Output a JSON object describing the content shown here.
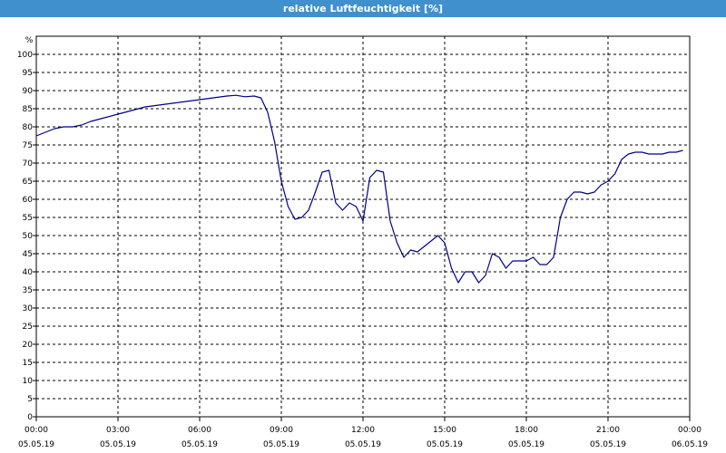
{
  "window": {
    "title": "relative Luftfeuchtigkeit [%]"
  },
  "colors": {
    "titlebar": "#3f90cc",
    "line": "#00008b",
    "grid": "#000000"
  },
  "chart_data": {
    "type": "line",
    "title": "relative Luftfeuchtigkeit [%]",
    "ylabel": "%",
    "xlabel": "",
    "ylim": [
      0,
      105
    ],
    "yticks": [
      "0",
      "5",
      "10",
      "15",
      "20",
      "25",
      "30",
      "35",
      "40",
      "45",
      "50",
      "55",
      "60",
      "65",
      "70",
      "75",
      "80",
      "85",
      "90",
      "95",
      "100"
    ],
    "xlim": [
      "05.05.19 00:00",
      "06.05.19 00:00"
    ],
    "xticks": [
      {
        "time": "00:00",
        "date": "05.05.19"
      },
      {
        "time": "03:00",
        "date": "05.05.19"
      },
      {
        "time": "06:00",
        "date": "05.05.19"
      },
      {
        "time": "09:00",
        "date": "05.05.19"
      },
      {
        "time": "12:00",
        "date": "05.05.19"
      },
      {
        "time": "15:00",
        "date": "05.05.19"
      },
      {
        "time": "18:00",
        "date": "05.05.19"
      },
      {
        "time": "21:00",
        "date": "05.05.19"
      },
      {
        "time": "00:00",
        "date": "06.05.19"
      }
    ],
    "grid": true,
    "legend": "none",
    "series": [
      {
        "x": [
          "00:00",
          "00:20",
          "00:40",
          "01:00",
          "01:20",
          "01:40",
          "02:00",
          "02:30",
          "03:00",
          "03:30",
          "04:00",
          "04:30",
          "05:00",
          "05:30",
          "06:00",
          "06:30",
          "07:00",
          "07:20",
          "07:40",
          "08:00",
          "08:15",
          "08:30",
          "08:45",
          "09:00",
          "09:15",
          "09:30",
          "09:45",
          "10:00",
          "10:15",
          "10:30",
          "10:45",
          "11:00",
          "11:15",
          "11:30",
          "11:45",
          "12:00",
          "12:15",
          "12:30",
          "12:45",
          "13:00",
          "13:15",
          "13:30",
          "13:45",
          "14:00",
          "14:15",
          "14:30",
          "14:45",
          "15:00",
          "15:15",
          "15:30",
          "15:45",
          "16:00",
          "16:15",
          "16:30",
          "16:45",
          "17:00",
          "17:15",
          "17:30",
          "17:45",
          "18:00",
          "18:15",
          "18:30",
          "18:45",
          "19:00",
          "19:15",
          "19:30",
          "19:45",
          "20:00",
          "20:15",
          "20:30",
          "20:45",
          "21:00",
          "21:15",
          "21:30",
          "21:45",
          "22:00",
          "22:15",
          "22:30",
          "22:45",
          "23:00",
          "23:15",
          "23:30",
          "23:45"
        ],
        "values": [
          77.5,
          78.5,
          79.5,
          80,
          80,
          80.5,
          81.5,
          82.5,
          83.5,
          84.5,
          85.5,
          86,
          86.5,
          87,
          87.5,
          88,
          88.5,
          88.7,
          88.3,
          88.5,
          88,
          84,
          76,
          65,
          58,
          54.5,
          55,
          57,
          62,
          67.5,
          68,
          59,
          57,
          59,
          58,
          54,
          66,
          68,
          67.5,
          54,
          48,
          44,
          46,
          45.5,
          47,
          48.5,
          50,
          48,
          41,
          37,
          40,
          40,
          37,
          39,
          45,
          44,
          41,
          43,
          43,
          43,
          44,
          42,
          42,
          44,
          55,
          60,
          62,
          62,
          61.5,
          62,
          64,
          65,
          67,
          71,
          72.5,
          73,
          73,
          72.5,
          72.5,
          72.5,
          73,
          73,
          73.5
        ]
      }
    ]
  }
}
